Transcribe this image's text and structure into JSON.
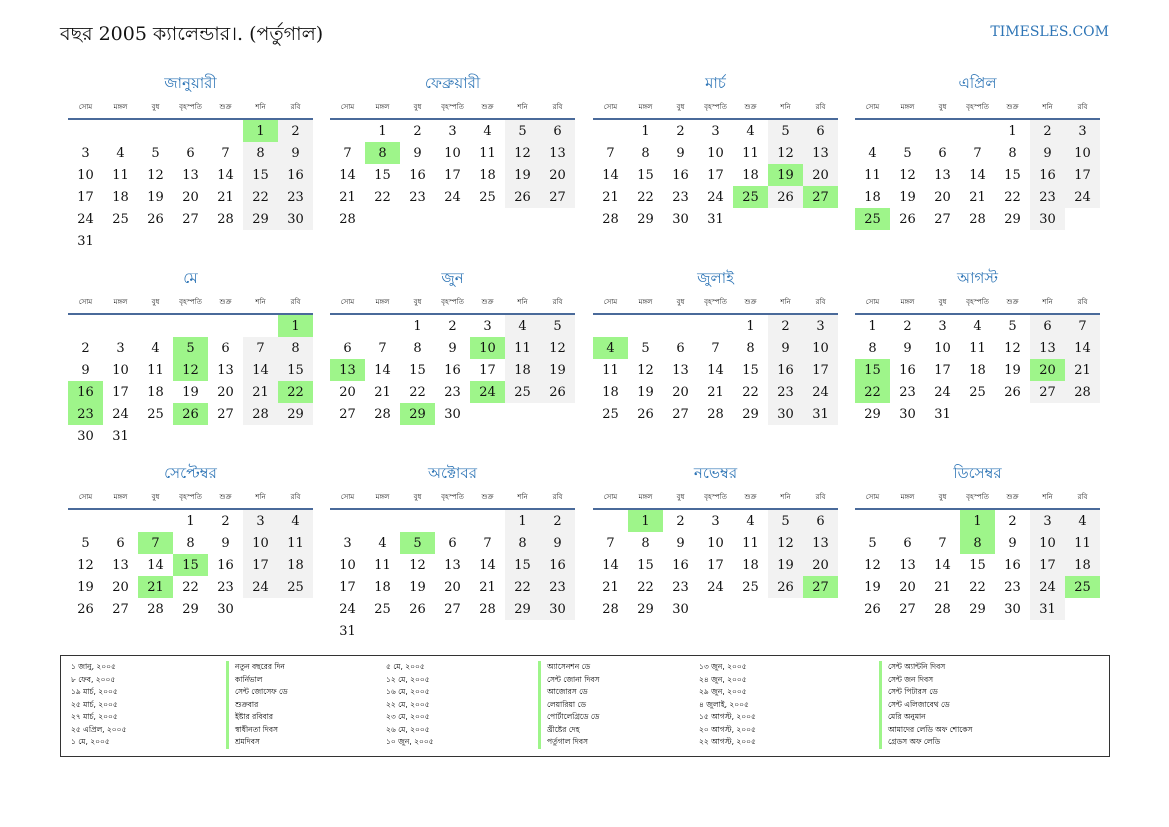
{
  "header": {
    "title": "বছর 2005 ক্যালেন্ডার।. (পর্তুগাল)",
    "site": "TIMESLES.COM"
  },
  "weekdays": [
    "সোম",
    "মঙ্গল",
    "বুধ",
    "বৃহস্পতি",
    "শুক্র",
    "শনি",
    "রবি"
  ],
  "colors": {
    "accent": "#2e75b6",
    "holiday": "#9ef58a",
    "weekend": "#f2f2f2"
  },
  "months": [
    {
      "name": "জানুয়ারী",
      "offset": 5,
      "days": 31,
      "holidays": [
        1
      ]
    },
    {
      "name": "ফেব্রুয়ারী",
      "offset": 1,
      "days": 28,
      "holidays": [
        8
      ]
    },
    {
      "name": "মার্চ",
      "offset": 1,
      "days": 31,
      "holidays": [
        19,
        25,
        27
      ]
    },
    {
      "name": "এপ্রিল",
      "offset": 4,
      "days": 30,
      "holidays": [
        25
      ]
    },
    {
      "name": "মে",
      "offset": 6,
      "days": 31,
      "holidays": [
        1,
        5,
        12,
        16,
        22,
        23,
        26
      ]
    },
    {
      "name": "জুন",
      "offset": 2,
      "days": 30,
      "holidays": [
        10,
        13,
        24,
        29
      ]
    },
    {
      "name": "জুলাই",
      "offset": 4,
      "days": 31,
      "holidays": [
        4
      ]
    },
    {
      "name": "আগস্ট",
      "offset": 0,
      "days": 31,
      "holidays": [
        15,
        20,
        22
      ]
    },
    {
      "name": "সেপ্টেম্বর",
      "offset": 3,
      "days": 30,
      "holidays": [
        7,
        15,
        21
      ]
    },
    {
      "name": "অক্টোবর",
      "offset": 5,
      "days": 31,
      "holidays": [
        5
      ]
    },
    {
      "name": "নভেম্বর",
      "offset": 1,
      "days": 30,
      "holidays": [
        1,
        27
      ]
    },
    {
      "name": "ডিসেম্বর",
      "offset": 3,
      "days": 31,
      "holidays": [
        1,
        8,
        25
      ]
    }
  ],
  "holiday_list": [
    {
      "date": "১ জানু, ২০০৫",
      "name": "নতুন বছরের দিন"
    },
    {
      "date": "৮ ফেব, ২০০৫",
      "name": "কার্নিভাল"
    },
    {
      "date": "১৯ মার্চ, ২০০৫",
      "name": "সেন্ট জোসেফ ডে"
    },
    {
      "date": "২৫ মার্চ, ২০০৫",
      "name": "শুক্রবার"
    },
    {
      "date": "২৭ মার্চ, ২০০৫",
      "name": "ইষ্টার রবিবার"
    },
    {
      "date": "২৫ এপ্রিল, ২০০৫",
      "name": "স্বাধীনতা দিবস"
    },
    {
      "date": "১ মে, ২০০৫",
      "name": "শ্রমদিবস"
    },
    {
      "date": "৫ মে, ২০০৫",
      "name": "অ্যাসেনশন ডে"
    },
    {
      "date": "১২ মে, ২০০৫",
      "name": "সেন্ট জোনা দিবস"
    },
    {
      "date": "১৬ মে, ২০০৫",
      "name": "আজোরস ডে"
    },
    {
      "date": "২২ মে, ২০০৫",
      "name": "লেয়ারিয়া ডে"
    },
    {
      "date": "২৩ মে, ২০০৫",
      "name": "পোর্টালেগ্রিডে ডে"
    },
    {
      "date": "২৬ মে, ২০০৫",
      "name": "খ্রীষ্টের দেহ"
    },
    {
      "date": "১০ জুন, ২০০৫",
      "name": "পর্তুগাল দিবস"
    },
    {
      "date": "১৩ জুন, ২০০৫",
      "name": "সেন্ট অ্যান্টনি দিবস"
    },
    {
      "date": "২৪ জুন, ২০০৫",
      "name": "সেন্ট জন দিবস"
    },
    {
      "date": "২৯ জুন, ২০০৫",
      "name": "সেন্ট পিটারস ডে"
    },
    {
      "date": "৪ জুলাই, ২০০৫",
      "name": "সেন্ট এলিজাবেথ ডে"
    },
    {
      "date": "১৫ আগস্ট, ২০০৫",
      "name": "মেরি অনুমান"
    },
    {
      "date": "২০ আগস্ট, ২০০৫",
      "name": "আমাদের লেডি অফ শোকেস"
    },
    {
      "date": "২২ আগস্ট, ২০০৫",
      "name": "গ্রেডস অফ লেডি"
    }
  ]
}
